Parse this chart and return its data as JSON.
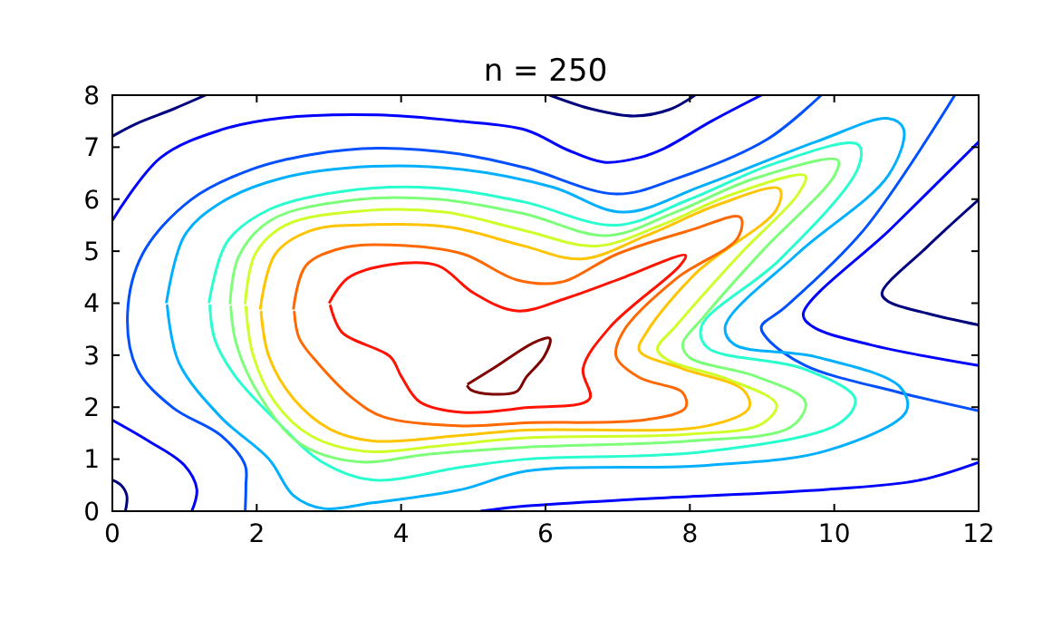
{
  "chart_data": {
    "type": "line",
    "title": "n = 250",
    "xlim": [
      0,
      12
    ],
    "ylim": [
      0,
      8
    ],
    "xticks": [
      0,
      2,
      4,
      6,
      8,
      10,
      12
    ],
    "yticks": [
      0,
      1,
      2,
      3,
      4,
      5,
      6,
      7,
      8
    ],
    "grid": false,
    "line_style": "solid",
    "series": [
      {
        "color": "#00007f",
        "x": [
          0,
          0.33,
          0.84,
          1.29
        ],
        "values": [
          7.21,
          7.45,
          7.73,
          8
        ]
      },
      {
        "color": "#00007f",
        "x": [
          0,
          0.12,
          0.2,
          0.18
        ],
        "values": [
          0.6,
          0.5,
          0.3,
          0
        ]
      },
      {
        "color": "#00007f",
        "x": [
          6.06,
          6.65,
          7.23,
          7.73,
          8.07
        ],
        "values": [
          8,
          7.73,
          7.6,
          7.73,
          8
        ]
      },
      {
        "color": "#00007f",
        "x": [
          12,
          11.3,
          10.66,
          10.75,
          11.3,
          12
        ],
        "values": [
          5.99,
          5.1,
          4.19,
          4.03,
          3.8,
          3.58
        ]
      },
      {
        "color": "#0000ff",
        "x": [
          0,
          0.67,
          1.5,
          2.34,
          3.68,
          4.8,
          5.73,
          6.3,
          6.81,
          7.3,
          7.65,
          8.3,
          8.99
        ],
        "values": [
          5.59,
          6.8,
          7.33,
          7.56,
          7.62,
          7.5,
          7.33,
          6.95,
          6.71,
          6.8,
          6.98,
          7.5,
          8
        ]
      },
      {
        "color": "#0000ff",
        "x": [
          0,
          0.5,
          1.0,
          1.17,
          1.1
        ],
        "values": [
          1.75,
          1.35,
          0.88,
          0.42,
          0
        ]
      },
      {
        "color": "#0000ff",
        "x": [
          5.1,
          5.73,
          7.4,
          9.91,
          11.16,
          12
        ],
        "values": [
          0,
          0.1,
          0.24,
          0.42,
          0.59,
          0.94
        ]
      },
      {
        "color": "#0000ff",
        "x": [
          12,
          10.8,
          9.57,
          9.7,
          10.5,
          12
        ],
        "values": [
          7.1,
          5.45,
          3.79,
          3.55,
          3.2,
          2.8
        ]
      },
      {
        "color": "#0050ff",
        "x": [
          1.84,
          1.85,
          1.84,
          1.5,
          0.84,
          0.34,
          0.21,
          0.42,
          1.09,
          1.92,
          2.76,
          3.68,
          4.85,
          5.73,
          6.98,
          7.82,
          9.07,
          9.82
        ],
        "values": [
          0,
          0.5,
          0.88,
          1.46,
          1.99,
          2.74,
          3.79,
          4.95,
          5.99,
          6.57,
          6.86,
          6.98,
          6.86,
          6.6,
          6.1,
          6.4,
          7.15,
          8
        ]
      },
      {
        "color": "#0050ff",
        "x": [
          11.67,
          10.41,
          9.3,
          8.99,
          9.07,
          9.6,
          10.91,
          12
        ],
        "values": [
          8,
          5.41,
          3.9,
          3.55,
          3.32,
          2.8,
          2.28,
          1.93
        ]
      },
      {
        "color": "#00b0ff",
        "x": [
          0.75,
          1.0,
          1.5,
          2.34,
          3.6,
          4.85,
          6.1,
          7.07,
          8.16,
          9.74,
          10.75,
          10.96,
          10.75,
          9.49,
          8.49,
          8.61,
          9.74,
          10.91,
          11.0,
          9.91,
          8.24,
          5.73,
          4.85,
          3.6,
          2.93,
          2.51,
          2.17,
          1.5,
          0.92,
          0.76
        ],
        "values": [
          4.02,
          5.3,
          5.93,
          6.4,
          6.63,
          6.57,
          6.23,
          5.75,
          6.25,
          7.1,
          7.55,
          7.35,
          6.46,
          4.95,
          3.55,
          3.21,
          2.97,
          2.39,
          1.93,
          1.17,
          0.88,
          0.77,
          0.42,
          0.16,
          0.05,
          0.3,
          1.0,
          1.81,
          2.86,
          3.95
        ]
      },
      {
        "color": "#29ffce",
        "x": [
          1.34,
          1.59,
          2.17,
          3.18,
          4.43,
          5.69,
          6.98,
          8.0,
          9.2,
          10.33,
          10.33,
          9.24,
          8.16,
          8.24,
          9.57,
          10.29,
          10.08,
          8.24,
          5.73,
          4.85,
          3.6,
          2.9,
          2.3,
          1.7,
          1.42,
          1.35
        ],
        "values": [
          4.02,
          5.18,
          5.8,
          6.15,
          6.22,
          5.95,
          5.5,
          6.0,
          6.7,
          7.05,
          6.6,
          4.83,
          3.55,
          3.15,
          2.74,
          2.16,
          1.7,
          1.15,
          1.0,
          0.85,
          0.6,
          0.95,
          1.7,
          2.6,
          3.3,
          3.95
        ]
      },
      {
        "color": "#7dff7a",
        "x": [
          1.63,
          1.75,
          2.2,
          3.3,
          4.5,
          5.7,
          6.85,
          7.8,
          8.9,
          10.05,
          10.0,
          9.0,
          8.2,
          7.9,
          8.0,
          8.9,
          9.6,
          9.4,
          8.0,
          5.73,
          4.4,
          3.4,
          2.6,
          2.05,
          1.72,
          1.64
        ],
        "values": [
          4.0,
          4.9,
          5.6,
          5.98,
          6.0,
          5.72,
          5.3,
          5.75,
          6.4,
          6.75,
          6.45,
          5.0,
          3.75,
          3.2,
          2.95,
          2.6,
          2.1,
          1.62,
          1.35,
          1.23,
          1.1,
          0.95,
          1.3,
          2.2,
          3.2,
          3.93
        ]
      },
      {
        "color": "#ceff29",
        "x": [
          1.84,
          1.98,
          2.4,
          3.5,
          4.6,
          5.7,
          6.7,
          7.6,
          8.6,
          9.6,
          9.5,
          8.7,
          7.8,
          7.55,
          7.7,
          8.5,
          9.2,
          9.0,
          8.0,
          5.73,
          4.5,
          3.5,
          2.75,
          2.25,
          1.95,
          1.85
        ],
        "values": [
          4.0,
          4.95,
          5.5,
          5.78,
          5.75,
          5.4,
          5.1,
          5.5,
          6.1,
          6.45,
          6.1,
          4.95,
          3.55,
          3.12,
          2.9,
          2.55,
          2.05,
          1.68,
          1.48,
          1.41,
          1.25,
          1.15,
          1.45,
          2.1,
          3.0,
          3.93
        ]
      },
      {
        "color": "#ffc400",
        "x": [
          2.05,
          2.26,
          2.76,
          3.6,
          4.68,
          5.7,
          6.5,
          7.4,
          8.4,
          9.24,
          9.2,
          8.1,
          7.4,
          7.3,
          7.9,
          8.74,
          8.82,
          8.24,
          5.73,
          4.85,
          3.6,
          3.01,
          2.51,
          2.17,
          2.06
        ],
        "values": [
          3.9,
          4.95,
          5.4,
          5.51,
          5.46,
          5.1,
          4.85,
          5.3,
          5.9,
          6.2,
          5.8,
          4.6,
          3.44,
          3.09,
          2.74,
          2.33,
          1.99,
          1.64,
          1.56,
          1.46,
          1.35,
          1.58,
          2.16,
          2.97,
          3.83
        ]
      },
      {
        "color": "#ff6800",
        "x": [
          2.51,
          2.68,
          3.18,
          3.85,
          4.85,
          5.6,
          6.2,
          7.0,
          8.0,
          8.7,
          8.66,
          7.82,
          7.07,
          6.98,
          7.3,
          7.9,
          7.94,
          7.4,
          5.73,
          4.85,
          3.76,
          3.34,
          2.84,
          2.59,
          2.52
        ],
        "values": [
          3.9,
          4.72,
          5.06,
          5.12,
          4.95,
          4.45,
          4.4,
          4.95,
          5.4,
          5.65,
          5.25,
          4.48,
          3.44,
          2.97,
          2.57,
          2.28,
          1.99,
          1.76,
          1.7,
          1.64,
          1.81,
          2.16,
          2.86,
          3.32,
          3.83
        ]
      },
      {
        "color": "#ff1300",
        "x": [
          3.01,
          3.26,
          3.85,
          4.51,
          5.0,
          5.6,
          6.3,
          7.0,
          7.94,
          7.86,
          6.9,
          6.52,
          6.61,
          5.73,
          4.85,
          4.26,
          4.0,
          3.85,
          3.18,
          3.02
        ],
        "values": [
          4.02,
          4.48,
          4.74,
          4.72,
          4.2,
          3.85,
          4.1,
          4.45,
          4.92,
          4.72,
          3.55,
          2.74,
          2.16,
          1.99,
          1.9,
          2.1,
          2.6,
          2.97,
          3.44,
          3.95
        ]
      },
      {
        "color": "#7f0000",
        "x": [
          4.93,
          5.27,
          5.85,
          6.06,
          5.98,
          5.73,
          5.6,
          5.27,
          4.97,
          4.92
        ],
        "values": [
          2.45,
          2.74,
          3.25,
          3.32,
          2.97,
          2.57,
          2.3,
          2.25,
          2.33,
          2.4
        ]
      }
    ]
  }
}
